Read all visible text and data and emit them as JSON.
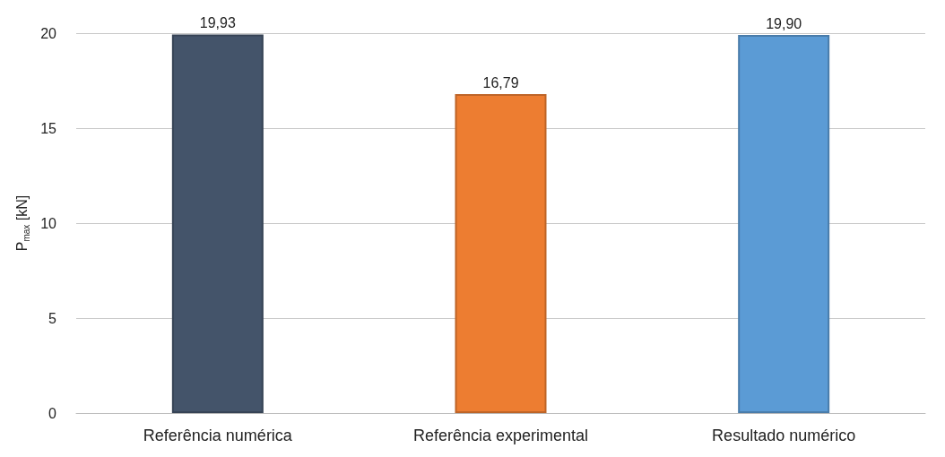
{
  "chart_data": {
    "type": "bar",
    "ylabel": "P$_{max}$ [kN]",
    "categories": [
      "Referência numérica",
      "Referência experimental",
      "Resultado numérico"
    ],
    "values": [
      19.93,
      16.79,
      19.9
    ],
    "colors": [
      "#44546a",
      "#ed7d31",
      "#5b9bd5"
    ],
    "value_labels": [
      "19,93",
      "16,79",
      "19,90"
    ],
    "ylim": [
      0,
      20
    ],
    "yticks": [
      0,
      5,
      10,
      15,
      20
    ],
    "grid": "y"
  }
}
